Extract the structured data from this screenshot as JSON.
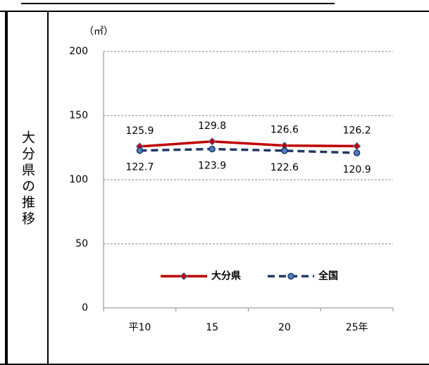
{
  "side_label": "大分県の推移",
  "chart_data": {
    "type": "line",
    "unit_label": "（㎡）",
    "categories": [
      "平10",
      "15",
      "20",
      "25年"
    ],
    "series": [
      {
        "name": "大分県",
        "color": "#c00000",
        "line_style": "solid",
        "marker": "diamond",
        "values": [
          125.9,
          129.8,
          126.6,
          126.2
        ]
      },
      {
        "name": "全国",
        "color": "#1f3864",
        "line_style": "dashed",
        "marker": "circle",
        "values": [
          122.7,
          123.9,
          122.6,
          120.9
        ]
      }
    ],
    "ylim": [
      0,
      200
    ],
    "yticks": [
      0,
      50,
      100,
      150,
      200
    ],
    "grid": true,
    "legend": "lower center"
  }
}
